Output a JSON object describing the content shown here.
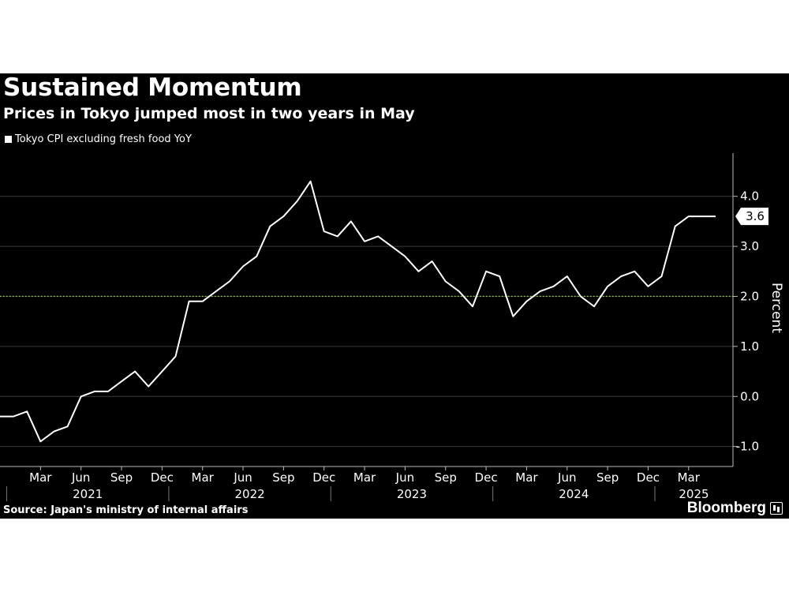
{
  "title": "Sustained Momentum",
  "subtitle": "Prices in Tokyo jumped most in two years in May",
  "source": "Source: Japan's ministry of internal affairs",
  "brand": "Bloomberg",
  "colors": {
    "background": "#000000",
    "line": "#ffffff",
    "target_line": "#9bd24d",
    "grid": "#3a3a3a",
    "callout_bg": "#ffffff",
    "callout_text": "#000000"
  },
  "chart_data": {
    "type": "line",
    "legend": [
      "Tokyo CPI excluding fresh food YoY"
    ],
    "ylabel": "Percent",
    "ylim": [
      -1.4,
      4.8
    ],
    "yticks": [
      -1.0,
      0.0,
      1.0,
      2.0,
      3.0,
      4.0
    ],
    "ytick_labels": [
      "-1.0",
      "0.0",
      "1.0",
      "2.0",
      "3.0",
      "4.0"
    ],
    "reference_line": 2.0,
    "x_month_labels": [
      "Mar",
      "Jun",
      "Sep",
      "Dec",
      "Mar",
      "Jun",
      "Sep",
      "Dec",
      "Mar",
      "Jun",
      "Sep",
      "Dec",
      "Mar",
      "Jun",
      "Sep",
      "Dec",
      "Mar"
    ],
    "x_year_labels": [
      "2021",
      "2022",
      "2023",
      "2024",
      "2025"
    ],
    "last_value_label": "3.6",
    "series": [
      {
        "name": "Tokyo CPI excluding fresh food YoY",
        "x": [
          "2020-12",
          "2021-01",
          "2021-02",
          "2021-03",
          "2021-04",
          "2021-05",
          "2021-06",
          "2021-07",
          "2021-08",
          "2021-09",
          "2021-10",
          "2021-11",
          "2021-12",
          "2022-01",
          "2022-02",
          "2022-03",
          "2022-04",
          "2022-05",
          "2022-06",
          "2022-07",
          "2022-08",
          "2022-09",
          "2022-10",
          "2022-11",
          "2022-12",
          "2023-01",
          "2023-02",
          "2023-03",
          "2023-04",
          "2023-05",
          "2023-06",
          "2023-07",
          "2023-08",
          "2023-09",
          "2023-10",
          "2023-11",
          "2023-12",
          "2024-01",
          "2024-02",
          "2024-03",
          "2024-04",
          "2024-05",
          "2024-06",
          "2024-07",
          "2024-08",
          "2024-09",
          "2024-10",
          "2024-11",
          "2024-12",
          "2025-01",
          "2025-02",
          "2025-03",
          "2025-04",
          "2025-05"
        ],
        "values": [
          -0.4,
          -0.4,
          -0.3,
          -0.9,
          -0.7,
          -0.6,
          0.0,
          0.1,
          0.1,
          0.3,
          0.5,
          0.2,
          0.5,
          0.8,
          1.9,
          1.9,
          2.1,
          2.3,
          2.6,
          2.8,
          3.4,
          3.6,
          3.9,
          4.3,
          3.3,
          3.2,
          3.5,
          3.1,
          3.2,
          3.0,
          2.8,
          2.5,
          2.7,
          2.3,
          2.1,
          1.8,
          2.5,
          2.4,
          1.6,
          1.9,
          2.1,
          2.2,
          2.4,
          2.0,
          1.8,
          2.2,
          2.4,
          2.5,
          2.2,
          2.4,
          3.4,
          3.6,
          3.6,
          3.6
        ]
      }
    ]
  }
}
